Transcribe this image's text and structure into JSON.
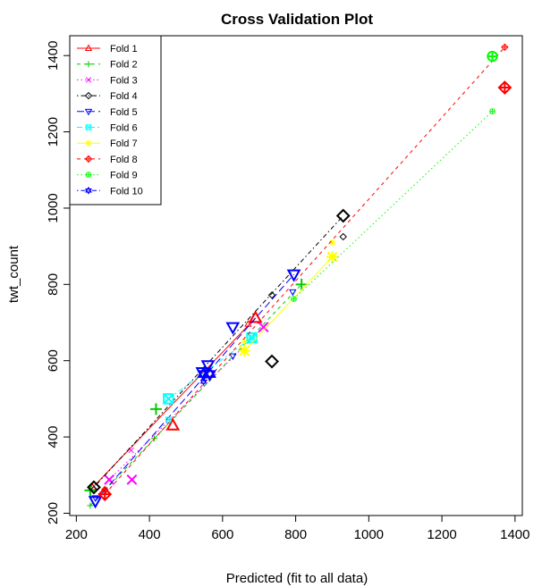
{
  "chart_data": {
    "type": "scatter",
    "title": "Cross Validation Plot",
    "xlabel": "Predicted (fit to all data)",
    "ylabel": "twt_count",
    "xlim": [
      200,
      1400
    ],
    "ylim": [
      200,
      1400
    ],
    "x_ticks": [
      200,
      400,
      600,
      800,
      1000,
      1200,
      1400
    ],
    "y_ticks": [
      200,
      400,
      600,
      800,
      1000,
      1200,
      1400
    ],
    "legend_position": "top-left",
    "series": [
      {
        "name": "Fold 1",
        "color": "#ff0000",
        "marker": "triangle-up",
        "dash": "solid",
        "line": [
          [
            245,
            268
          ],
          [
            690,
            712
          ]
        ],
        "cv_points": [
          [
            245,
            268
          ],
          [
            670,
            696
          ]
        ],
        "obs_points": [
          [
            464,
            430
          ],
          [
            690,
            712
          ]
        ]
      },
      {
        "name": "Fold 2",
        "color": "#00cc00",
        "marker": "plus",
        "dash": "dashed",
        "line": [
          [
            238,
            220
          ],
          [
            816,
            800
          ]
        ],
        "cv_points": [
          [
            238,
            220
          ],
          [
            413,
            396
          ]
        ],
        "obs_points": [
          [
            238,
            260
          ],
          [
            418,
            473
          ],
          [
            816,
            800
          ]
        ]
      },
      {
        "name": "Fold 3",
        "color": "#ff00ff",
        "marker": "cross",
        "dash": "dotted",
        "line": [
          [
            290,
            288
          ],
          [
            712,
            688
          ]
        ],
        "cv_points": [
          [
            350,
            365
          ],
          [
            290,
            288
          ]
        ],
        "obs_points": [
          [
            290,
            288
          ],
          [
            352,
            288
          ],
          [
            712,
            688
          ]
        ]
      },
      {
        "name": "Fold 4",
        "color": "#000000",
        "marker": "diamond",
        "dash": "dotdash",
        "line": [
          [
            248,
            268
          ],
          [
            930,
            980
          ]
        ],
        "cv_points": [
          [
            248,
            262
          ],
          [
            735,
            772
          ],
          [
            930,
            925
          ]
        ],
        "obs_points": [
          [
            248,
            268
          ],
          [
            735,
            598
          ],
          [
            930,
            980
          ]
        ]
      },
      {
        "name": "Fold 5",
        "color": "#0000ff",
        "marker": "triangle-down",
        "dash": "longdash",
        "line": [
          [
            252,
            232
          ],
          [
            795,
            826
          ]
        ],
        "cv_points": [
          [
            252,
            240
          ],
          [
            628,
            612
          ],
          [
            792,
            780
          ]
        ],
        "obs_points": [
          [
            252,
            232
          ],
          [
            545,
            570
          ],
          [
            560,
            588
          ],
          [
            628,
            688
          ],
          [
            795,
            826
          ]
        ]
      },
      {
        "name": "Fold 6",
        "color": "#00ffff",
        "marker": "square-cross",
        "dash": "twodash",
        "line": [
          [
            452,
            500
          ],
          [
            680,
            660
          ]
        ],
        "cv_points": [
          [
            452,
            445
          ],
          [
            680,
            660
          ]
        ],
        "obs_points": [
          [
            452,
            500
          ],
          [
            680,
            660
          ]
        ]
      },
      {
        "name": "Fold 7",
        "color": "#ffff00",
        "marker": "asterisk",
        "dash": "solid",
        "line": [
          [
            660,
            626
          ],
          [
            900,
            872
          ]
        ],
        "cv_points": [
          [
            660,
            650
          ],
          [
            900,
            910
          ]
        ],
        "obs_points": [
          [
            660,
            626
          ],
          [
            900,
            872
          ]
        ]
      },
      {
        "name": "Fold 8",
        "color": "#ff0000",
        "marker": "diamond-plus",
        "dash": "dashed",
        "line": [
          [
            278,
            250
          ],
          [
            1372,
            1422
          ]
        ],
        "cv_points": [
          [
            278,
            262
          ],
          [
            1372,
            1422
          ]
        ],
        "obs_points": [
          [
            278,
            250
          ],
          [
            1372,
            1316
          ]
        ]
      },
      {
        "name": "Fold 9",
        "color": "#00ff00",
        "marker": "circle-plus",
        "dash": "dotted",
        "line": [
          [
            795,
            762
          ],
          [
            1338,
            1254
          ]
        ],
        "cv_points": [
          [
            795,
            762
          ],
          [
            1338,
            1254
          ]
        ],
        "obs_points": [
          [
            1338,
            1398
          ]
        ]
      },
      {
        "name": "Fold 10",
        "color": "#0000ff",
        "marker": "star-of-david",
        "dash": "dotdash",
        "line": [
          [
            548,
            545
          ],
          [
            565,
            565
          ]
        ],
        "cv_points": [
          [
            548,
            545
          ]
        ],
        "obs_points": [
          [
            548,
            565
          ],
          [
            565,
            565
          ]
        ]
      }
    ]
  }
}
